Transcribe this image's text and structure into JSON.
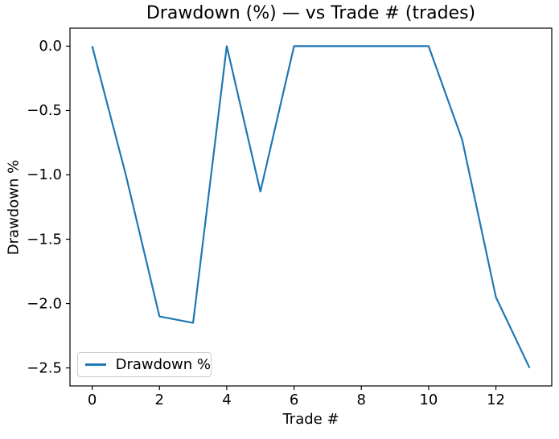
{
  "chart_data": {
    "type": "line",
    "title": "Drawdown (%) — vs Trade # (trades)",
    "xlabel": "Trade #",
    "ylabel": "Drawdown %",
    "x": [
      0,
      1,
      2,
      3,
      4,
      5,
      6,
      7,
      8,
      9,
      10,
      11,
      12,
      13
    ],
    "series": [
      {
        "name": "Drawdown %",
        "color": "#1f77b4",
        "values": [
          0.0,
          -1.0,
          -2.1,
          -2.15,
          0.0,
          -1.13,
          0.0,
          0.0,
          0.0,
          0.0,
          0.0,
          -0.73,
          -1.95,
          -2.5
        ]
      }
    ],
    "xticks": [
      0,
      2,
      4,
      6,
      8,
      10,
      12
    ],
    "yticks": [
      0.0,
      -0.5,
      -1.0,
      -1.5,
      -2.0,
      -2.5
    ],
    "xlim": [
      -0.66,
      13.66
    ],
    "ylim": [
      -2.64,
      0.14
    ],
    "grid": false,
    "legend": {
      "label": "Drawdown %",
      "position": "lower left"
    }
  },
  "colors": {
    "line": "#1f77b4",
    "spine": "#000000",
    "text": "#000000",
    "legend_border": "#cccccc"
  }
}
